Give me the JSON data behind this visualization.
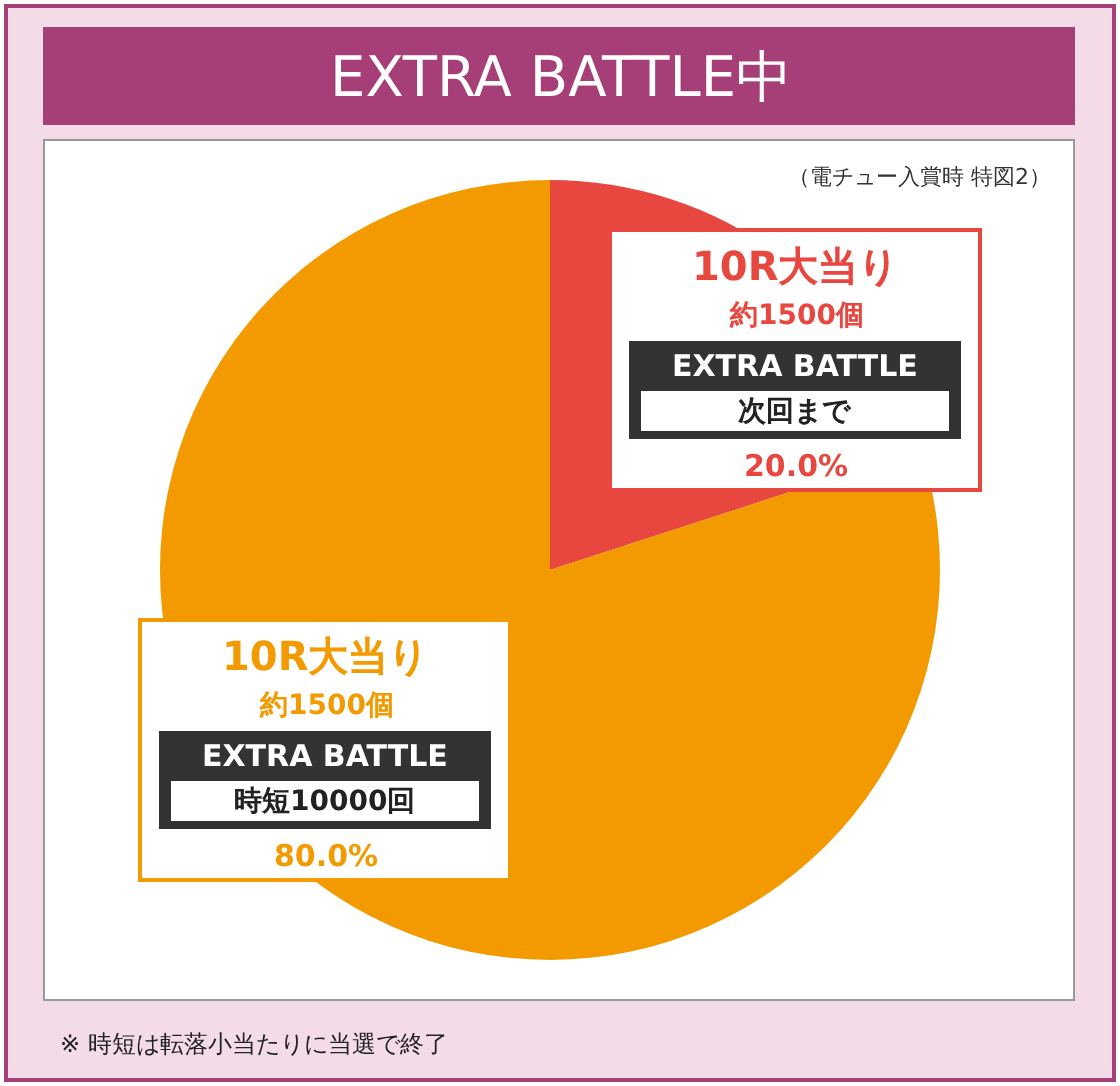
{
  "chart_data": {
    "type": "pie",
    "title": "EXTRA BATTLE中",
    "subtitle": "（電チュー入賞時 特図2）",
    "categories": [
      "10R大当り",
      "10R大当り"
    ],
    "values": [
      20,
      80
    ],
    "colors": [
      "#e8473f",
      "#f29a00"
    ],
    "value_labels": [
      "20.0%",
      "80.0%"
    ],
    "annotations": [
      "約1500個",
      "EXTRA BATTLE",
      "次回まで",
      "約1500個",
      "EXTRA BATTLE",
      "時短10000回",
      "※ 時短は転落小当たりに当選で終了"
    ],
    "legend": false
  }
}
